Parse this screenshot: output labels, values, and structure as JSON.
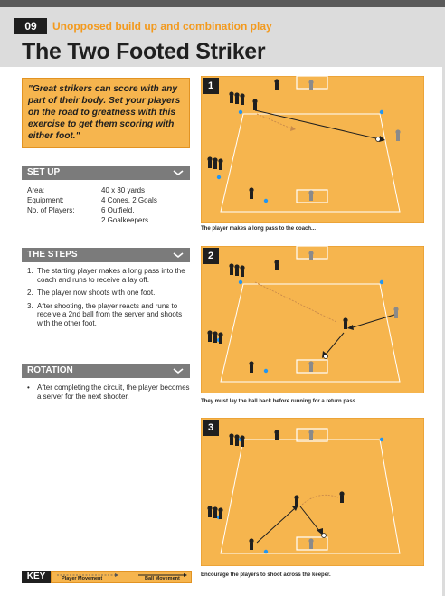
{
  "header": {
    "number": "09",
    "topic": "Unopposed build up and combination play",
    "title": "The Two Footed Striker"
  },
  "quote": "\"Great strikers can score with any part of their body. Set your players on the road to greatness with this exercise to get them scoring with either foot.\"",
  "setup": {
    "heading": "SET UP",
    "rows": [
      {
        "key": "Area:",
        "value": "40 x 30 yards"
      },
      {
        "key": "Equipment:",
        "value": "4 Cones, 2 Goals"
      },
      {
        "key": "No. of Players:",
        "value": "6 Outfield,"
      },
      {
        "key": "",
        "value": "2 Goalkeepers"
      }
    ]
  },
  "steps": {
    "heading": "THE STEPS",
    "items": [
      {
        "n": "1.",
        "text": "The starting player makes a long pass into the coach and runs to receive a lay off."
      },
      {
        "n": "2.",
        "text": "The player now shoots with one foot."
      },
      {
        "n": "3.",
        "text": "After shooting, the player reacts and runs to receive a 2nd ball from the server and shoots with the other foot."
      }
    ]
  },
  "rotation": {
    "heading": "ROTATION",
    "items": [
      {
        "n": "•",
        "text": "After completing the circuit, the player becomes a server for the next shooter."
      }
    ]
  },
  "key": {
    "label": "KEY",
    "player_movement": "Player Movement",
    "ball_movement": "Ball Movement"
  },
  "diagrams": [
    {
      "badge": "1",
      "caption": "The player makes a long pass to the coach..."
    },
    {
      "badge": "2",
      "caption": "They must lay the ball back before running for a return pass."
    },
    {
      "badge": "3",
      "caption": "Encourage the players to shoot across the keeper."
    }
  ],
  "colors": {
    "accent_orange": "#f39a1e",
    "pitch": "#f6b54e",
    "header_bg": "#dcdcdc",
    "section_bar": "#7b7b7b",
    "dark": "#1f1f1f"
  }
}
